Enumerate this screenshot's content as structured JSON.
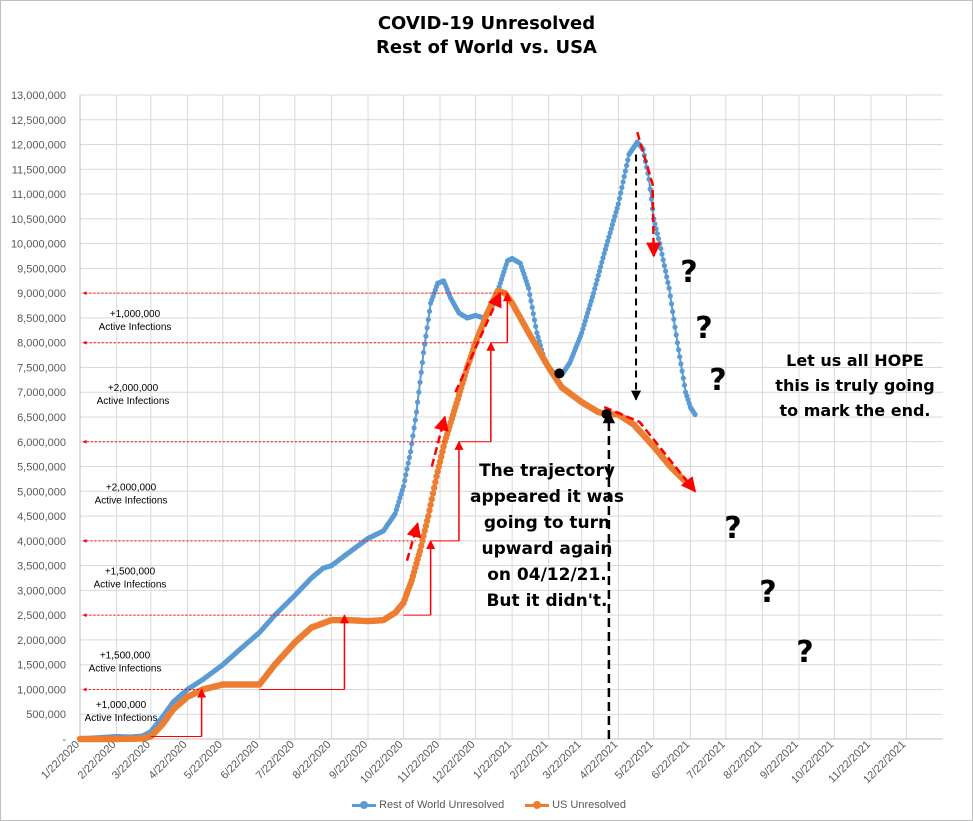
{
  "chart_data": {
    "type": "line",
    "title_lines": [
      "COVID-19 Unresolved",
      "Rest of World vs. USA"
    ],
    "xlabel": "",
    "ylabel": "",
    "ylim": [
      0,
      13000000
    ],
    "ytick_step": 500000,
    "y_tick_labels": [
      "-",
      "500,000",
      "1,000,000",
      "1,500,000",
      "2,000,000",
      "2,500,000",
      "3,000,000",
      "3,500,000",
      "4,000,000",
      "4,500,000",
      "5,000,000",
      "5,500,000",
      "6,000,000",
      "6,500,000",
      "7,000,000",
      "7,500,000",
      "8,000,000",
      "8,500,000",
      "9,000,000",
      "9,500,000",
      "10,000,000",
      "10,500,000",
      "11,000,000",
      "11,500,000",
      "12,000,000",
      "12,500,000",
      "13,000,000"
    ],
    "x_tick_labels": [
      "1/22/2020",
      "2/22/2020",
      "3/22/2020",
      "4/22/2020",
      "5/22/2020",
      "6/22/2020",
      "7/22/2020",
      "8/22/2020",
      "9/22/2020",
      "10/22/2020",
      "11/22/2020",
      "12/22/2020",
      "1/22/2021",
      "2/22/2021",
      "3/22/2021",
      "4/22/2021",
      "5/22/2021",
      "6/22/2021",
      "7/22/2021",
      "8/22/2021",
      "9/22/2021",
      "10/22/2021",
      "11/22/2021",
      "12/22/2021"
    ],
    "xlim": [
      "2020-01-22",
      "2022-01-22"
    ],
    "grid": true,
    "legend_position": "bottom",
    "series": [
      {
        "name": "Rest of World Unresolved",
        "color": "#5b9bd5",
        "points": [
          [
            "2020-01-22",
            1000
          ],
          [
            "2020-02-05",
            25000
          ],
          [
            "2020-02-22",
            50000
          ],
          [
            "2020-03-05",
            40000
          ],
          [
            "2020-03-15",
            60000
          ],
          [
            "2020-03-22",
            150000
          ],
          [
            "2020-04-01",
            450000
          ],
          [
            "2020-04-10",
            750000
          ],
          [
            "2020-04-22",
            1000000
          ],
          [
            "2020-05-05",
            1200000
          ],
          [
            "2020-05-22",
            1500000
          ],
          [
            "2020-06-05",
            1800000
          ],
          [
            "2020-06-22",
            2150000
          ],
          [
            "2020-07-05",
            2500000
          ],
          [
            "2020-07-22",
            2900000
          ],
          [
            "2020-08-05",
            3250000
          ],
          [
            "2020-08-15",
            3450000
          ],
          [
            "2020-08-22",
            3500000
          ],
          [
            "2020-09-05",
            3750000
          ],
          [
            "2020-09-22",
            4050000
          ],
          [
            "2020-10-05",
            4200000
          ],
          [
            "2020-10-15",
            4550000
          ],
          [
            "2020-10-22",
            5100000
          ],
          [
            "2020-10-28",
            5800000
          ],
          [
            "2020-11-02",
            6600000
          ],
          [
            "2020-11-08",
            7800000
          ],
          [
            "2020-11-14",
            8800000
          ],
          [
            "2020-11-20",
            9200000
          ],
          [
            "2020-11-25",
            9250000
          ],
          [
            "2020-12-01",
            8900000
          ],
          [
            "2020-12-08",
            8600000
          ],
          [
            "2020-12-15",
            8500000
          ],
          [
            "2020-12-22",
            8550000
          ],
          [
            "2020-12-29",
            8500000
          ],
          [
            "2021-01-05",
            8700000
          ],
          [
            "2021-01-12",
            9200000
          ],
          [
            "2021-01-18",
            9650000
          ],
          [
            "2021-01-22",
            9700000
          ],
          [
            "2021-01-29",
            9600000
          ],
          [
            "2021-02-05",
            9100000
          ],
          [
            "2021-02-12",
            8200000
          ],
          [
            "2021-02-19",
            7600000
          ],
          [
            "2021-02-26",
            7400000
          ],
          [
            "2021-03-05",
            7350000
          ],
          [
            "2021-03-12",
            7600000
          ],
          [
            "2021-03-22",
            8200000
          ],
          [
            "2021-04-01",
            9000000
          ],
          [
            "2021-04-10",
            9800000
          ],
          [
            "2021-04-22",
            10800000
          ],
          [
            "2021-05-01",
            11800000
          ],
          [
            "2021-05-08",
            12050000
          ],
          [
            "2021-05-13",
            11900000
          ],
          [
            "2021-05-18",
            11300000
          ],
          [
            "2021-05-22",
            10500000
          ],
          [
            "2021-05-28",
            9900000
          ],
          [
            "2021-06-04",
            9100000
          ],
          [
            "2021-06-11",
            8000000
          ],
          [
            "2021-06-18",
            7000000
          ],
          [
            "2021-06-22",
            6700000
          ],
          [
            "2021-06-26",
            6550000
          ]
        ]
      },
      {
        "name": "US Unresolved",
        "color": "#ed7d31",
        "points": [
          [
            "2020-01-22",
            0
          ],
          [
            "2020-02-22",
            0
          ],
          [
            "2020-03-15",
            10000
          ],
          [
            "2020-03-22",
            50000
          ],
          [
            "2020-04-01",
            300000
          ],
          [
            "2020-04-10",
            600000
          ],
          [
            "2020-04-22",
            850000
          ],
          [
            "2020-05-05",
            1000000
          ],
          [
            "2020-05-22",
            1100000
          ],
          [
            "2020-06-05",
            1100000
          ],
          [
            "2020-06-22",
            1100000
          ],
          [
            "2020-07-05",
            1500000
          ],
          [
            "2020-07-22",
            1950000
          ],
          [
            "2020-08-05",
            2250000
          ],
          [
            "2020-08-22",
            2400000
          ],
          [
            "2020-09-05",
            2400000
          ],
          [
            "2020-09-22",
            2380000
          ],
          [
            "2020-10-05",
            2400000
          ],
          [
            "2020-10-15",
            2550000
          ],
          [
            "2020-10-22",
            2750000
          ],
          [
            "2020-10-29",
            3200000
          ],
          [
            "2020-11-05",
            3800000
          ],
          [
            "2020-11-12",
            4500000
          ],
          [
            "2020-11-19",
            5300000
          ],
          [
            "2020-11-26",
            6000000
          ],
          [
            "2020-12-05",
            6700000
          ],
          [
            "2020-12-15",
            7500000
          ],
          [
            "2020-12-22",
            8000000
          ],
          [
            "2021-01-01",
            8600000
          ],
          [
            "2021-01-10",
            9050000
          ],
          [
            "2021-01-16",
            9000000
          ],
          [
            "2021-01-22",
            8800000
          ],
          [
            "2021-02-05",
            8200000
          ],
          [
            "2021-02-22",
            7500000
          ],
          [
            "2021-03-05",
            7100000
          ],
          [
            "2021-03-22",
            6800000
          ],
          [
            "2021-04-05",
            6600000
          ],
          [
            "2021-04-12",
            6560000
          ],
          [
            "2021-04-22",
            6550000
          ],
          [
            "2021-05-05",
            6350000
          ],
          [
            "2021-05-22",
            5900000
          ],
          [
            "2021-06-05",
            5500000
          ],
          [
            "2021-06-22",
            5100000
          ]
        ]
      }
    ],
    "annotations": [
      {
        "type": "text",
        "lines": [
          "+1,000,000",
          "Active Infections"
        ]
      },
      {
        "type": "text",
        "lines": [
          "+1,500,000",
          "Active Infections"
        ]
      },
      {
        "type": "text",
        "lines": [
          "+1,500,000",
          "Active Infections"
        ]
      },
      {
        "type": "text",
        "lines": [
          "+2,000,000",
          "Active Infections"
        ]
      },
      {
        "type": "text",
        "lines": [
          "+2,000,000",
          "Active Infections"
        ]
      },
      {
        "type": "text",
        "lines": [
          "+1,000,000",
          "Active Infections"
        ]
      },
      {
        "type": "callout",
        "lines": [
          "The trajectory",
          "appeared it was",
          "going to turn",
          "upward again",
          "on 04/12/21.",
          "But it didn't."
        ]
      },
      {
        "type": "callout",
        "lines": [
          "Let us all HOPE",
          "this is truly going",
          "to mark the end."
        ]
      },
      {
        "type": "marker",
        "text": "?"
      }
    ],
    "accent_colors": {
      "arrows": "#ff0000",
      "guides": "#000000"
    }
  }
}
